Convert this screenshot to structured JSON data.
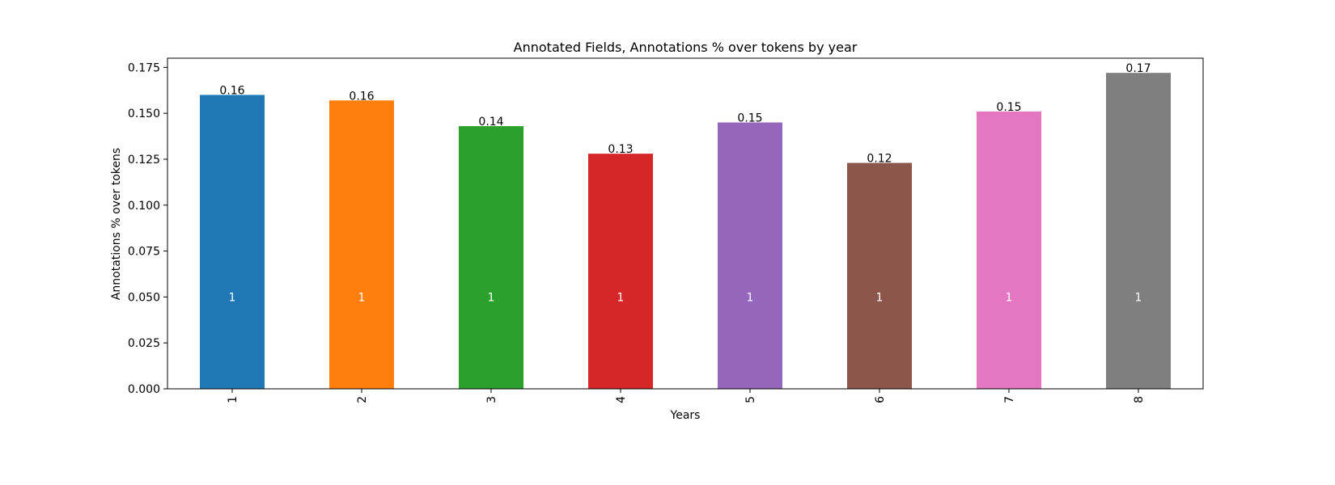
{
  "chart_data": {
    "type": "bar",
    "title": "Annotated Fields, Annotations % over tokens by year",
    "xlabel": "Years",
    "ylabel": "Annotations % over tokens",
    "categories": [
      "1",
      "2",
      "3",
      "4",
      "5",
      "6",
      "7",
      "8"
    ],
    "values": [
      0.16,
      0.157,
      0.143,
      0.128,
      0.145,
      0.123,
      0.151,
      0.172
    ],
    "value_labels": [
      "0.16",
      "0.16",
      "0.14",
      "0.13",
      "0.15",
      "0.12",
      "0.15",
      "0.17"
    ],
    "inner_labels": [
      "1",
      "1",
      "1",
      "1",
      "1",
      "1",
      "1",
      "1"
    ],
    "inner_label_value": 0.05,
    "ylim": [
      0,
      0.18
    ],
    "yticks": [
      0.0,
      0.025,
      0.05,
      0.075,
      0.1,
      0.125,
      0.15,
      0.175
    ],
    "ytick_labels": [
      "0.000",
      "0.025",
      "0.050",
      "0.075",
      "0.100",
      "0.125",
      "0.150",
      "0.175"
    ],
    "colors": [
      "#1f77b4",
      "#ff7f0e",
      "#2ca02c",
      "#d62728",
      "#9467bd",
      "#8c564b",
      "#e377c2",
      "#7f7f7f"
    ],
    "grid": false,
    "legend": "none"
  }
}
